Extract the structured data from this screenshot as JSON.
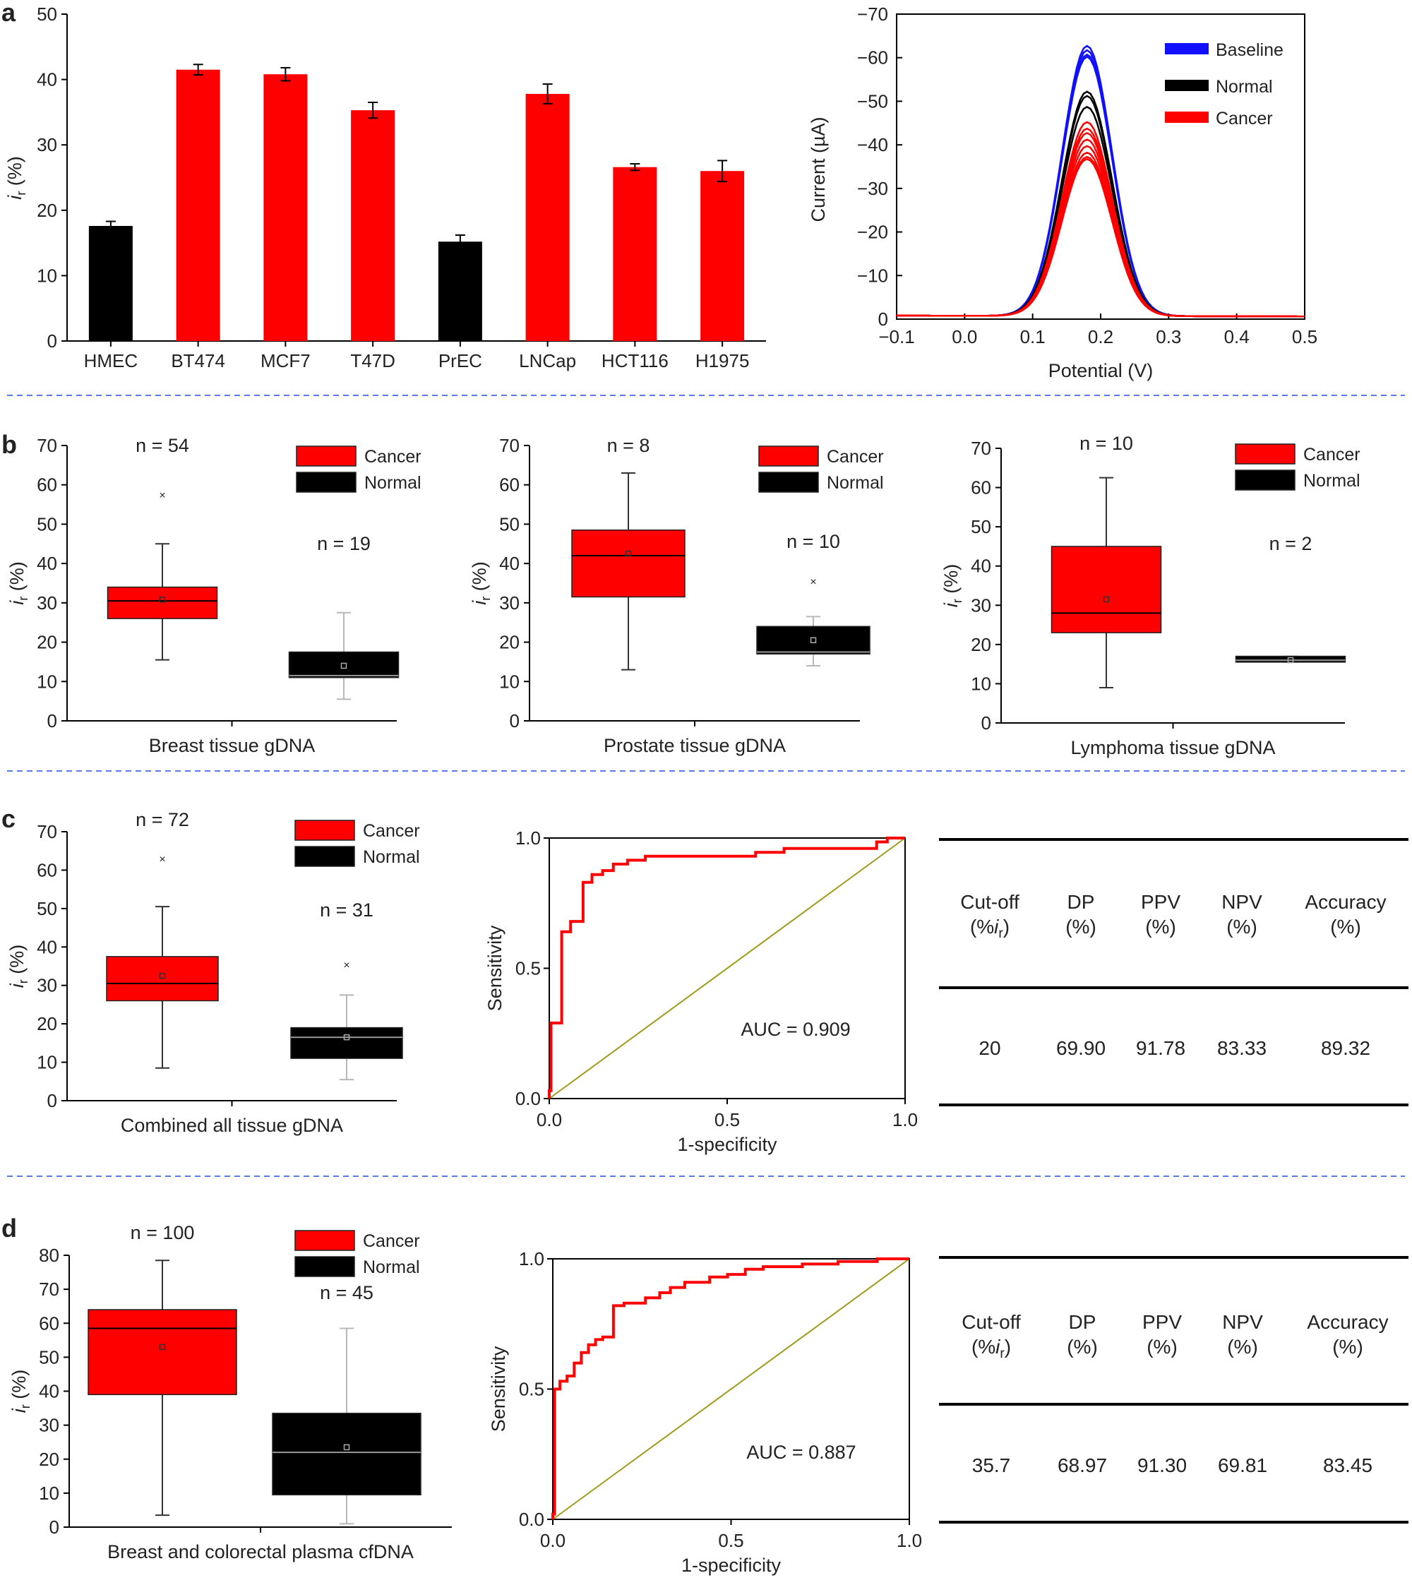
{
  "panel_letters": {
    "a": "a",
    "b": "b",
    "c": "c",
    "d": "d"
  },
  "colors": {
    "cancer": "#ff0000",
    "normal": "#000000",
    "baseline": "#1010ff",
    "diag": "#a09a1a",
    "divider": "#5a7be6"
  },
  "chart_data": [
    {
      "id": "a1",
      "type": "bar",
      "title": "",
      "xlabel": "",
      "ylabel": "i_r (%)",
      "ylim": [
        0,
        50
      ],
      "yticks": [
        "0",
        "10",
        "20",
        "30",
        "40",
        "50"
      ],
      "categories": [
        "HMEC",
        "BT474",
        "MCF7",
        "T47D",
        "PrEC",
        "LNCap",
        "HCT116",
        "H1975"
      ],
      "values": [
        17.6,
        41.5,
        40.8,
        35.3,
        15.2,
        37.8,
        26.6,
        26.0
      ],
      "errors": [
        0.7,
        0.8,
        1.0,
        1.2,
        1.0,
        1.5,
        0.5,
        1.6
      ],
      "groups": [
        "normal",
        "cancer",
        "cancer",
        "cancer",
        "normal",
        "cancer",
        "cancer",
        "cancer"
      ]
    },
    {
      "id": "a2",
      "type": "line",
      "xlabel": "Potential (V)",
      "ylabel": "Current (µA)",
      "xlim": [
        -0.1,
        0.5
      ],
      "ylim": [
        0,
        -70
      ],
      "xticks": [
        "−0.1",
        "0.0",
        "0.1",
        "0.2",
        "0.3",
        "0.4",
        "0.5"
      ],
      "yticks": [
        "0",
        "−10",
        "−20",
        "−30",
        "−40",
        "−50",
        "−60",
        "−70"
      ],
      "legend": [
        "Baseline",
        "Normal",
        "Cancer"
      ],
      "peak_potential": 0.18,
      "series": [
        {
          "name": "Baseline",
          "peaks": [
            -62,
            -61,
            -60,
            -59.5
          ]
        },
        {
          "name": "Normal",
          "peaks": [
            -51.5,
            -50.5,
            -48
          ]
        },
        {
          "name": "Cancer",
          "peaks": [
            -44.5,
            -43,
            -42,
            -40.5,
            -39,
            -37.5,
            -36.5,
            -36
          ]
        }
      ]
    },
    {
      "id": "b1",
      "type": "box",
      "xlabel": "Breast tissue gDNA",
      "ylabel": "i_r (%)",
      "ylim": [
        0,
        70
      ],
      "yticks": [
        "0",
        "10",
        "20",
        "30",
        "40",
        "50",
        "60",
        "70"
      ],
      "legend": [
        "Cancer",
        "Normal"
      ],
      "boxes": [
        {
          "group": "cancer",
          "n": "n = 54",
          "min": 15.5,
          "q1": 26,
          "median": 30.5,
          "q3": 34,
          "max": 45,
          "mean": 30.8,
          "outliers": [
            57.5
          ]
        },
        {
          "group": "normal",
          "n": "n = 19",
          "min": 5.5,
          "q1": 11,
          "median": 11.5,
          "q3": 17.5,
          "max": 27.5,
          "mean": 14,
          "outliers": []
        }
      ]
    },
    {
      "id": "b2",
      "type": "box",
      "xlabel": "Prostate tissue gDNA",
      "ylabel": "i_r (%)",
      "ylim": [
        0,
        70
      ],
      "yticks": [
        "0",
        "10",
        "20",
        "30",
        "40",
        "50",
        "60",
        "70"
      ],
      "legend": [
        "Cancer",
        "Normal"
      ],
      "boxes": [
        {
          "group": "cancer",
          "n": "n = 8",
          "min": 13,
          "q1": 31.5,
          "median": 42,
          "q3": 48.5,
          "max": 63,
          "mean": 42.5,
          "outliers": []
        },
        {
          "group": "normal",
          "n": "n = 10",
          "min": 14,
          "q1": 17,
          "median": 17.5,
          "q3": 24,
          "max": 26.5,
          "mean": 20.5,
          "outliers": [
            35.5
          ]
        }
      ]
    },
    {
      "id": "b3",
      "type": "box",
      "xlabel": "Lymphoma tissue gDNA",
      "ylabel": "i_r (%)",
      "ylim": [
        0,
        70
      ],
      "yticks": [
        "0",
        "10",
        "20",
        "30",
        "40",
        "50",
        "60",
        "70"
      ],
      "legend": [
        "Cancer",
        "Normal"
      ],
      "boxes": [
        {
          "group": "cancer",
          "n": "n = 10",
          "min": 9,
          "q1": 23,
          "median": 28,
          "q3": 45,
          "max": 62.5,
          "mean": 31.5,
          "outliers": []
        },
        {
          "group": "normal",
          "n": "n = 2",
          "min": 15.5,
          "q1": 15.5,
          "median": 16,
          "q3": 17,
          "max": 17,
          "mean": 16,
          "outliers": []
        }
      ]
    },
    {
      "id": "c1",
      "type": "box",
      "xlabel": "Combined all tissue gDNA",
      "ylabel": "i_r (%)",
      "ylim": [
        0,
        70
      ],
      "yticks": [
        "0",
        "10",
        "20",
        "30",
        "40",
        "50",
        "60",
        "70"
      ],
      "legend": [
        "Cancer",
        "Normal"
      ],
      "boxes": [
        {
          "group": "cancer",
          "n": "n = 72",
          "min": 8.5,
          "q1": 26,
          "median": 30.5,
          "q3": 37.5,
          "max": 50.5,
          "mean": 32.5,
          "outliers": [
            63
          ]
        },
        {
          "group": "normal",
          "n": "n = 31",
          "min": 5.5,
          "q1": 11,
          "median": 16.5,
          "q3": 19,
          "max": 27.5,
          "mean": 16.5,
          "outliers": [
            35.5
          ]
        }
      ]
    },
    {
      "id": "c2",
      "type": "line",
      "xlabel": "1-specificity",
      "ylabel": "Sensitivity",
      "xlim": [
        0,
        1
      ],
      "ylim": [
        0,
        1
      ],
      "xticks": [
        "0.0",
        "0.5",
        "1.0"
      ],
      "yticks": [
        "0.0",
        "0.5",
        "1.0"
      ],
      "annotation": "AUC = 0.909",
      "roc": [
        [
          0,
          0
        ],
        [
          0,
          0.03
        ],
        [
          0.005,
          0.03
        ],
        [
          0.005,
          0.29
        ],
        [
          0.035,
          0.29
        ],
        [
          0.035,
          0.64
        ],
        [
          0.06,
          0.64
        ],
        [
          0.06,
          0.68
        ],
        [
          0.095,
          0.68
        ],
        [
          0.095,
          0.83
        ],
        [
          0.12,
          0.83
        ],
        [
          0.12,
          0.86
        ],
        [
          0.15,
          0.86
        ],
        [
          0.15,
          0.875
        ],
        [
          0.18,
          0.875
        ],
        [
          0.18,
          0.9
        ],
        [
          0.22,
          0.9
        ],
        [
          0.22,
          0.915
        ],
        [
          0.27,
          0.915
        ],
        [
          0.27,
          0.93
        ],
        [
          0.58,
          0.93
        ],
        [
          0.58,
          0.945
        ],
        [
          0.66,
          0.945
        ],
        [
          0.66,
          0.96
        ],
        [
          0.92,
          0.96
        ],
        [
          0.92,
          0.985
        ],
        [
          0.95,
          0.985
        ],
        [
          0.95,
          1.0
        ],
        [
          1.0,
          1.0
        ]
      ]
    },
    {
      "id": "d1",
      "type": "box",
      "xlabel": "Breast and colorectal plasma cfDNA",
      "ylabel": "i_r (%)",
      "ylim": [
        0,
        80
      ],
      "yticks": [
        "0",
        "10",
        "20",
        "30",
        "40",
        "50",
        "60",
        "70",
        "80"
      ],
      "legend": [
        "Cancer",
        "Normal"
      ],
      "boxes": [
        {
          "group": "cancer",
          "n": "n = 100",
          "min": 3.5,
          "q1": 39,
          "median": 58.5,
          "q3": 64,
          "max": 78.5,
          "mean": 53,
          "outliers": []
        },
        {
          "group": "normal",
          "n": "n = 45",
          "min": 1,
          "q1": 9.5,
          "median": 22,
          "q3": 33.5,
          "max": 58.5,
          "mean": 23.5,
          "outliers": []
        }
      ]
    },
    {
      "id": "d2",
      "type": "line",
      "xlabel": "1-specificity",
      "ylabel": "Sensitivity",
      "xlim": [
        0,
        1
      ],
      "ylim": [
        0,
        1
      ],
      "xticks": [
        "0.0",
        "0.5",
        "1.0"
      ],
      "yticks": [
        "0.0",
        "0.5",
        "1.0"
      ],
      "annotation": "AUC = 0.887",
      "roc": [
        [
          0,
          0
        ],
        [
          0,
          0.02
        ],
        [
          0.005,
          0.02
        ],
        [
          0.005,
          0.5
        ],
        [
          0.02,
          0.5
        ],
        [
          0.02,
          0.53
        ],
        [
          0.04,
          0.53
        ],
        [
          0.04,
          0.55
        ],
        [
          0.06,
          0.55
        ],
        [
          0.06,
          0.6
        ],
        [
          0.08,
          0.6
        ],
        [
          0.08,
          0.64
        ],
        [
          0.1,
          0.64
        ],
        [
          0.1,
          0.67
        ],
        [
          0.12,
          0.67
        ],
        [
          0.12,
          0.69
        ],
        [
          0.14,
          0.69
        ],
        [
          0.14,
          0.7
        ],
        [
          0.17,
          0.7
        ],
        [
          0.17,
          0.82
        ],
        [
          0.2,
          0.82
        ],
        [
          0.2,
          0.83
        ],
        [
          0.26,
          0.83
        ],
        [
          0.26,
          0.85
        ],
        [
          0.3,
          0.85
        ],
        [
          0.3,
          0.87
        ],
        [
          0.33,
          0.87
        ],
        [
          0.33,
          0.89
        ],
        [
          0.37,
          0.89
        ],
        [
          0.37,
          0.91
        ],
        [
          0.44,
          0.91
        ],
        [
          0.44,
          0.93
        ],
        [
          0.49,
          0.93
        ],
        [
          0.49,
          0.94
        ],
        [
          0.54,
          0.94
        ],
        [
          0.54,
          0.96
        ],
        [
          0.59,
          0.96
        ],
        [
          0.59,
          0.97
        ],
        [
          0.7,
          0.97
        ],
        [
          0.7,
          0.98
        ],
        [
          0.8,
          0.98
        ],
        [
          0.8,
          0.99
        ],
        [
          0.91,
          0.99
        ],
        [
          0.91,
          1.0
        ],
        [
          1.0,
          1.0
        ]
      ]
    },
    {
      "id": "c3",
      "type": "table",
      "headers": [
        [
          "Cut-off",
          "(%i",
          "r",
          ")"
        ],
        [
          "DP",
          "(%)"
        ],
        [
          "PPV",
          "(%)"
        ],
        [
          "NPV",
          "(%)"
        ],
        [
          "Accuracy",
          "(%)"
        ]
      ],
      "rows": [
        [
          "20",
          "69.90",
          "91.78",
          "83.33",
          "89.32"
        ]
      ]
    },
    {
      "id": "d3",
      "type": "table",
      "headers": [
        [
          "Cut-off",
          "(%i",
          "r",
          ")"
        ],
        [
          "DP",
          "(%)"
        ],
        [
          "PPV",
          "(%)"
        ],
        [
          "NPV",
          "(%)"
        ],
        [
          "Accuracy",
          "(%)"
        ]
      ],
      "rows": [
        [
          "35.7",
          "68.97",
          "91.30",
          "69.81",
          "83.45"
        ]
      ]
    }
  ]
}
